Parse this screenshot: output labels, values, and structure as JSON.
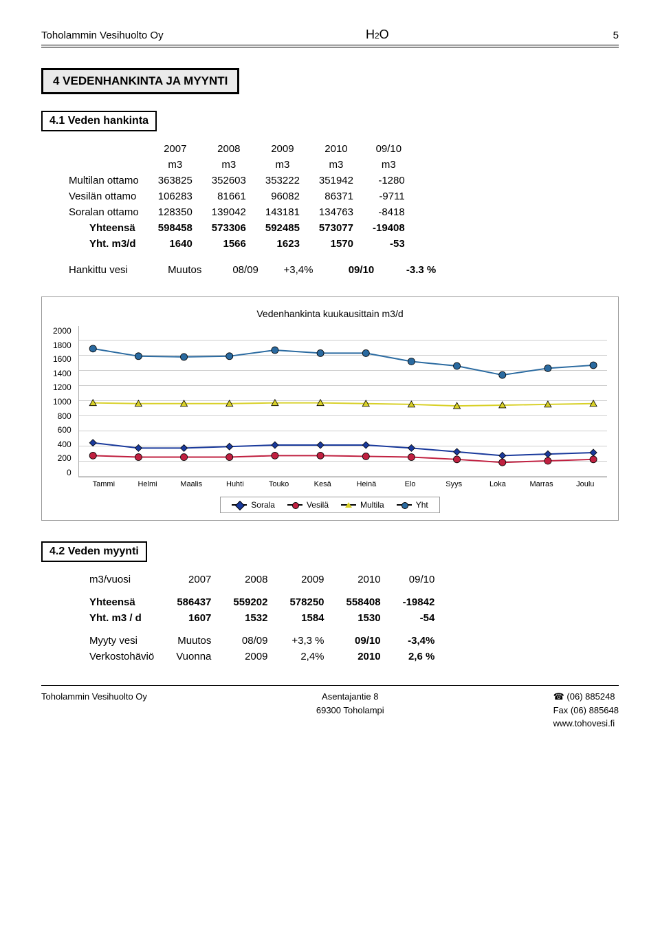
{
  "header": {
    "company": "Toholammin Vesihuolto Oy",
    "logo": "H₂O",
    "page": "5"
  },
  "section4": {
    "title": "4 VEDENHANKINTA JA MYYNTI"
  },
  "sub41": {
    "title": "4.1 Veden hankinta"
  },
  "t1": {
    "years": [
      "2007",
      "2008",
      "2009",
      "2010",
      "09/10"
    ],
    "unit": "m3",
    "rows": [
      {
        "label": "Multilan ottamo",
        "v": [
          "363825",
          "352603",
          "353222",
          "351942",
          "-1280"
        ]
      },
      {
        "label": "Vesilän ottamo",
        "v": [
          "106283",
          "81661",
          "96082",
          "86371",
          "-9711"
        ]
      },
      {
        "label": "Soralan ottamo",
        "v": [
          "128350",
          "139042",
          "143181",
          "134763",
          "-8418"
        ]
      }
    ],
    "totals": [
      {
        "label": "Yhteensä",
        "v": [
          "598458",
          "573306",
          "592485",
          "573077",
          "-19408"
        ],
        "bold": true
      },
      {
        "label": "Yht. m3/d",
        "v": [
          "1640",
          "1566",
          "1623",
          "1570",
          "-53"
        ],
        "bold": true
      }
    ]
  },
  "hankittu": {
    "label": "Hankittu vesi",
    "a": "Muutos",
    "b": "08/09",
    "c": "+3,4%",
    "d": "09/10",
    "e": "-3.3 %"
  },
  "chart": {
    "title": "Vedenhankinta kuukausittain m3/d",
    "ymax": 2000,
    "ystep": 200,
    "yticks": [
      "2000",
      "1800",
      "1600",
      "1400",
      "1200",
      "1000",
      "800",
      "600",
      "400",
      "200",
      "0"
    ],
    "months": [
      "Tammi",
      "Helmi",
      "Maalis",
      "Huhti",
      "Touko",
      "Kesä",
      "Heinä",
      "Elo",
      "Syys",
      "Loka",
      "Marras",
      "Joulu"
    ],
    "series": {
      "Sorala": {
        "color": "#1a3a9c",
        "marker": "diamond",
        "values": [
          450,
          380,
          380,
          400,
          420,
          420,
          420,
          380,
          330,
          280,
          300,
          320
        ]
      },
      "Vesilä": {
        "color": "#c02040",
        "marker": "circle",
        "values": [
          280,
          260,
          260,
          260,
          280,
          280,
          270,
          260,
          230,
          190,
          210,
          230
        ]
      },
      "Multila": {
        "color": "#d8d028",
        "marker": "triangle",
        "values": [
          980,
          970,
          970,
          970,
          980,
          980,
          970,
          960,
          940,
          950,
          960,
          970
        ]
      },
      "Yht": {
        "color": "#2a6aa0",
        "marker": "circle",
        "values": [
          1700,
          1600,
          1590,
          1600,
          1680,
          1640,
          1640,
          1530,
          1470,
          1350,
          1440,
          1480
        ]
      }
    },
    "legend": [
      "Sorala",
      "Vesilä",
      "Multila",
      "Yht"
    ]
  },
  "sub42": {
    "title": "4.2 Veden myynti"
  },
  "t2": {
    "head": [
      "m3/vuosi",
      "2007",
      "2008",
      "2009",
      "2010",
      "09/10"
    ],
    "totals": [
      {
        "label": "Yhteensä",
        "v": [
          "586437",
          "559202",
          "578250",
          "558408",
          "-19842"
        ],
        "bold": true
      },
      {
        "label": "Yht. m3 / d",
        "v": [
          "1607",
          "1532",
          "1584",
          "1530",
          "-54"
        ],
        "bold": true
      }
    ],
    "extra": [
      {
        "label": "Myyty vesi",
        "a": "Muutos",
        "b": "08/09",
        "c": "+3,3 %",
        "d": "09/10",
        "e": "-3,4%"
      },
      {
        "label": "Verkostohäviö",
        "a": "Vuonna",
        "b": "2009",
        "c": "2,4%",
        "d": "2010",
        "e": "2,6 %"
      }
    ]
  },
  "footer": {
    "company": "Toholammin Vesihuolto Oy",
    "addr1": "Asentajantie 8",
    "addr2": "69300 Toholampi",
    "phone": "(06) 885248",
    "fax": "Fax (06) 885648",
    "web": "www.tohovesi.fi"
  }
}
